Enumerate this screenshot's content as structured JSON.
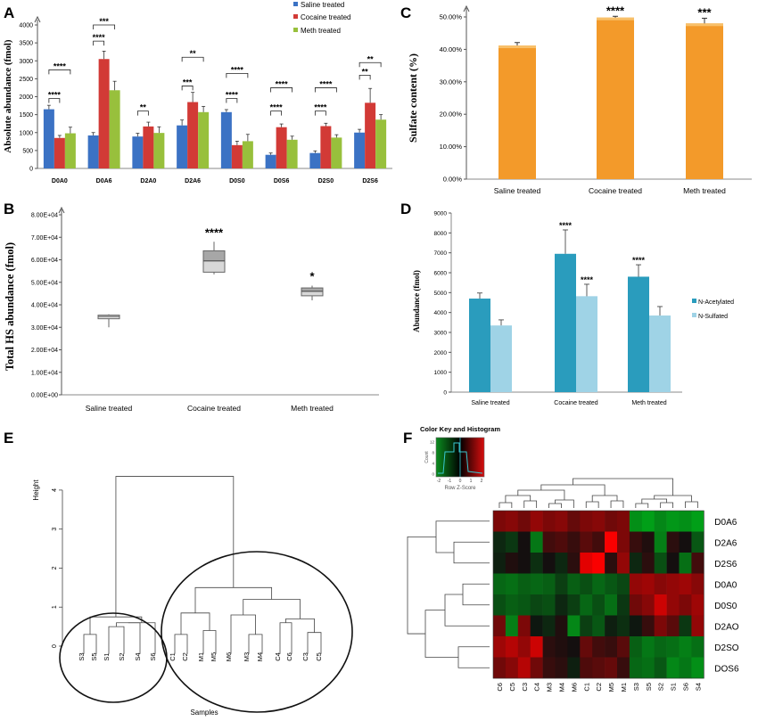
{
  "panels": {
    "A": {
      "letter": "A"
    },
    "B": {
      "letter": "B"
    },
    "C": {
      "letter": "C"
    },
    "D": {
      "letter": "D"
    },
    "E": {
      "letter": "E"
    },
    "F": {
      "letter": "F"
    }
  },
  "colors": {
    "saline": "#3b72c4",
    "cocaine": "#d23a36",
    "meth": "#98c03c",
    "orange": "#f39a2a",
    "acetyl": "#2a9cbd",
    "sulfated": "#9fd3e6"
  },
  "chart_data": [
    {
      "id": "A",
      "type": "bar",
      "ylabel": "Absolute abundance (fmol)",
      "ylim": [
        0,
        4000
      ],
      "yticks": [
        0,
        500,
        1000,
        1500,
        2000,
        2500,
        3000,
        3500,
        4000
      ],
      "categories": [
        "D0A0",
        "D0A6",
        "D2A0",
        "D2A6",
        "D0S0",
        "D0S6",
        "D2S0",
        "D2S6"
      ],
      "series": [
        {
          "name": "Saline treated",
          "values": [
            1650,
            920,
            890,
            1200,
            1570,
            380,
            430,
            1000
          ],
          "err": [
            110,
            80,
            90,
            150,
            70,
            50,
            60,
            90
          ]
        },
        {
          "name": "Cocaine treated",
          "values": [
            850,
            3050,
            1170,
            1850,
            650,
            1150,
            1180,
            1830
          ],
          "err": [
            70,
            220,
            120,
            270,
            110,
            90,
            80,
            400
          ]
        },
        {
          "name": "Meth treated",
          "values": [
            980,
            2180,
            990,
            1570,
            760,
            800,
            860,
            1360
          ],
          "err": [
            170,
            250,
            170,
            160,
            190,
            100,
            80,
            140
          ]
        }
      ],
      "annotations": [
        {
          "category": 0,
          "text": "****",
          "level": 1950,
          "from": 0,
          "to": 1
        },
        {
          "category": 0,
          "text": "****",
          "level": 2750,
          "from": 0,
          "to": 2
        },
        {
          "category": 1,
          "text": "****",
          "level": 3550,
          "from": 0,
          "to": 1
        },
        {
          "category": 1,
          "text": "***",
          "level": 4000,
          "from": 0,
          "to": 2
        },
        {
          "category": 2,
          "text": "**",
          "level": 1600,
          "from": 0,
          "to": 1
        },
        {
          "category": 3,
          "text": "***",
          "level": 2300,
          "from": 0,
          "to": 1
        },
        {
          "category": 3,
          "text": "**",
          "level": 3100,
          "from": 0,
          "to": 2
        },
        {
          "category": 4,
          "text": "****",
          "level": 1950,
          "from": 0,
          "to": 1
        },
        {
          "category": 4,
          "text": "****",
          "level": 2650,
          "from": 0,
          "to": 2
        },
        {
          "category": 5,
          "text": "****",
          "level": 1600,
          "from": 0,
          "to": 1
        },
        {
          "category": 5,
          "text": "****",
          "level": 2250,
          "from": 0,
          "to": 2
        },
        {
          "category": 6,
          "text": "****",
          "level": 1600,
          "from": 0,
          "to": 1
        },
        {
          "category": 6,
          "text": "****",
          "level": 2250,
          "from": 0,
          "to": 2
        },
        {
          "category": 7,
          "text": "**",
          "level": 2600,
          "from": 0,
          "to": 1
        },
        {
          "category": 7,
          "text": "**",
          "level": 2950,
          "from": 0,
          "to": 2
        }
      ]
    },
    {
      "id": "B",
      "type": "box",
      "ylabel": "Total HS abundance (fmol)",
      "ylim": [
        0,
        80000
      ],
      "yticks": [
        "0.00E+00",
        "1.00E+04",
        "2.00E+04",
        "3.00E+04",
        "4.00E+04",
        "5.00E+04",
        "6.00E+04",
        "7.00E+04",
        "8.00E+04"
      ],
      "categories": [
        "Saline treated",
        "Cocaine treated",
        "Meth treated"
      ],
      "boxes": [
        {
          "min": 30000,
          "q1": 33800,
          "median": 34800,
          "q3": 35400,
          "max": 35800,
          "sig": ""
        },
        {
          "min": 53500,
          "q1": 54500,
          "median": 59500,
          "q3": 64000,
          "max": 68000,
          "sig": "****"
        },
        {
          "min": 42000,
          "q1": 44000,
          "median": 46000,
          "q3": 47500,
          "max": 48500,
          "sig": "*"
        }
      ]
    },
    {
      "id": "C",
      "type": "bar",
      "ylabel": "Sulfate content (%)",
      "ylim": [
        0,
        50
      ],
      "yticks": [
        "0.00%",
        "10.00%",
        "20.00%",
        "30.00%",
        "40.00%",
        "50.00%"
      ],
      "categories": [
        "Saline treated",
        "Cocaine treated",
        "Meth treated"
      ],
      "values": [
        41.2,
        49.8,
        48.0
      ],
      "err": [
        0.9,
        0.4,
        1.6
      ],
      "sig": [
        "",
        "****",
        "***"
      ]
    },
    {
      "id": "D",
      "type": "bar",
      "ylabel": "Abundance (fmol)",
      "ylim": [
        0,
        9000
      ],
      "yticks": [
        0,
        1000,
        2000,
        3000,
        4000,
        5000,
        6000,
        7000,
        8000,
        9000
      ],
      "categories": [
        "Saline treated",
        "Cocaine treated",
        "Meth treated"
      ],
      "series": [
        {
          "name": "N-Acetylated",
          "values": [
            4700,
            6950,
            5800
          ],
          "err": [
            280,
            1200,
            600
          ],
          "sig": [
            "",
            "****",
            "****"
          ]
        },
        {
          "name": "N-Sulfated",
          "values": [
            3350,
            4820,
            3850
          ],
          "err": [
            280,
            600,
            450
          ],
          "sig": [
            "",
            "****",
            ""
          ]
        }
      ]
    },
    {
      "id": "E",
      "type": "dendrogram",
      "ylabel": "Height",
      "xlabel": "Samples",
      "ylim": [
        0,
        4.5
      ],
      "yticks": [
        0,
        1,
        2,
        3,
        4
      ],
      "leaves": [
        "S3",
        "S5",
        "S1",
        "S2",
        "S4",
        "S6",
        "C1",
        "C2",
        "M1",
        "M5",
        "M6",
        "M3",
        "M4",
        "C4",
        "C6",
        "C3",
        "C5"
      ]
    },
    {
      "id": "F",
      "type": "heatmap",
      "color_key_title": "Color Key and Histogram",
      "color_key_xlabel": "Row Z-Score",
      "color_key_ylabel": "Count",
      "color_key_ticks": [
        "-2",
        "-1",
        "0",
        "1",
        "2"
      ],
      "color_key_yticks": [
        "0",
        "4",
        "8",
        "12"
      ],
      "rows": [
        "D0A6",
        "D2A6",
        "D2S6",
        "D0A0",
        "D0S0",
        "D2AO",
        "D2SO",
        "DOS6"
      ],
      "cols": [
        "C6",
        "C5",
        "C3",
        "C4",
        "M3",
        "M4",
        "M6",
        "C1",
        "C2",
        "M5",
        "M1",
        "S3",
        "S5",
        "S2",
        "S1",
        "S6",
        "S4"
      ],
      "values": [
        [
          0.9,
          1.0,
          0.8,
          1.1,
          0.9,
          1.0,
          0.7,
          0.9,
          1.0,
          0.8,
          0.9,
          -1.6,
          -1.8,
          -1.5,
          -1.7,
          -1.6,
          -1.8
        ],
        [
          -0.3,
          -0.5,
          0.0,
          -1.3,
          0.4,
          0.5,
          0.3,
          0.6,
          0.4,
          2.0,
          0.9,
          0.3,
          0.1,
          -1.4,
          0.2,
          0.0,
          -0.9
        ],
        [
          -0.2,
          0.1,
          0.0,
          -0.4,
          0.0,
          -0.3,
          0.2,
          1.8,
          2.4,
          0.2,
          1.1,
          -0.3,
          0.2,
          -0.8,
          0.0,
          -1.2,
          0.4
        ],
        [
          -1.1,
          -1.2,
          -1.0,
          -1.1,
          -1.0,
          -0.6,
          -1.0,
          -0.8,
          -1.1,
          -0.9,
          -0.7,
          1.1,
          1.2,
          1.0,
          1.1,
          1.2,
          1.0
        ],
        [
          -0.8,
          -1.0,
          -0.9,
          -0.7,
          -0.8,
          -0.3,
          -0.6,
          -1.1,
          -0.8,
          -1.2,
          -0.5,
          0.8,
          1.0,
          1.6,
          1.1,
          0.9,
          1.2
        ],
        [
          0.8,
          -1.4,
          0.9,
          -0.1,
          -0.3,
          0.1,
          -1.5,
          -0.6,
          -0.9,
          -0.2,
          -0.4,
          -0.1,
          0.3,
          0.9,
          0.6,
          -0.5,
          1.1
        ],
        [
          1.2,
          1.4,
          1.1,
          1.6,
          0.2,
          0.1,
          0.0,
          0.7,
          0.4,
          0.3,
          0.6,
          -1.0,
          -1.3,
          -1.1,
          -1.2,
          -1.4,
          -1.2
        ],
        [
          0.8,
          1.0,
          1.4,
          0.8,
          0.3,
          0.2,
          -0.2,
          0.5,
          0.6,
          0.7,
          0.3,
          -1.1,
          -1.2,
          -0.9,
          -1.5,
          -1.3,
          -1.6
        ]
      ]
    }
  ]
}
